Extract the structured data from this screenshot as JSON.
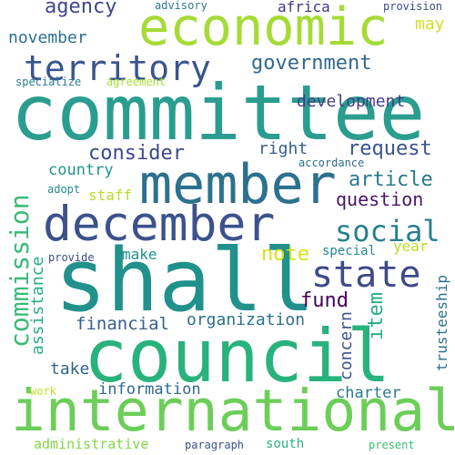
{
  "words": [
    {
      "id": "committee",
      "text": "committee",
      "color": "#2a9d8f"
    },
    {
      "id": "council",
      "text": "council",
      "color": "#28b27c"
    },
    {
      "id": "international",
      "text": "international",
      "color": "#6cce59"
    },
    {
      "id": "shall",
      "text": "shall",
      "color": "#21918c"
    },
    {
      "id": "december",
      "text": "december",
      "color": "#3b528b"
    },
    {
      "id": "economic",
      "text": "economic",
      "color": "#a5db36"
    },
    {
      "id": "member",
      "text": "member",
      "color": "#2c718e"
    },
    {
      "id": "commission",
      "text": "commission",
      "color": "#3aba76"
    },
    {
      "id": "territory",
      "text": "territory",
      "color": "#39568c"
    },
    {
      "id": "state",
      "text": "state",
      "color": "#3e4a89"
    },
    {
      "id": "social",
      "text": "social",
      "color": "#27808e"
    },
    {
      "id": "government",
      "text": "government",
      "color": "#31688e"
    },
    {
      "id": "agency",
      "text": "agency",
      "color": "#3f4788"
    },
    {
      "id": "november",
      "text": "november",
      "color": "#2d708e"
    },
    {
      "id": "request",
      "text": "request",
      "color": "#3b528b"
    },
    {
      "id": "consider",
      "text": "consider",
      "color": "#3e4989"
    },
    {
      "id": "development",
      "text": "development",
      "color": "#433e85"
    },
    {
      "id": "article",
      "text": "article",
      "color": "#2a788e"
    },
    {
      "id": "question",
      "text": "question",
      "color": "#481668"
    },
    {
      "id": "country",
      "text": "country",
      "color": "#21918c"
    },
    {
      "id": "right",
      "text": "right",
      "color": "#355f8d"
    },
    {
      "id": "fund",
      "text": "fund",
      "color": "#440154"
    },
    {
      "id": "item",
      "text": "item",
      "color": "#25ac82"
    },
    {
      "id": "note",
      "text": "note",
      "color": "#d8e219"
    },
    {
      "id": "financial",
      "text": "financial",
      "color": "#355f8d"
    },
    {
      "id": "organization",
      "text": "organization",
      "color": "#2d708e"
    },
    {
      "id": "information",
      "text": "information",
      "color": "#31688e"
    },
    {
      "id": "assistance",
      "text": "assistance",
      "color": "#29af7f"
    },
    {
      "id": "concern",
      "text": "concern",
      "color": "#3b528b"
    },
    {
      "id": "take",
      "text": "take",
      "color": "#31688e"
    },
    {
      "id": "charter",
      "text": "charter",
      "color": "#2a788e"
    },
    {
      "id": "make",
      "text": "make",
      "color": "#21918c"
    },
    {
      "id": "staff",
      "text": "staff",
      "color": "#b5de2b"
    },
    {
      "id": "special",
      "text": "special",
      "color": "#23898e"
    },
    {
      "id": "year",
      "text": "year",
      "color": "#b8de29"
    },
    {
      "id": "trusteeship",
      "text": "trusteeship",
      "color": "#2c728e"
    },
    {
      "id": "africa",
      "text": "africa",
      "color": "#453882"
    },
    {
      "id": "may",
      "text": "may",
      "color": "#d0e11c"
    },
    {
      "id": "advisory",
      "text": "advisory",
      "color": "#2a788e"
    },
    {
      "id": "provision",
      "text": "provision",
      "color": "#3e4a89"
    },
    {
      "id": "specialize",
      "text": "specialize",
      "color": "#287d8e"
    },
    {
      "id": "agreement",
      "text": "agreement",
      "color": "#a8db34"
    },
    {
      "id": "accordance",
      "text": "accordance",
      "color": "#2e6f8e"
    },
    {
      "id": "adopt",
      "text": "adopt",
      "color": "#24868e"
    },
    {
      "id": "provide",
      "text": "provide",
      "color": "#3e4a89"
    },
    {
      "id": "work",
      "text": "work",
      "color": "#c2df23"
    },
    {
      "id": "administrative",
      "text": "administrative",
      "color": "#86d549"
    },
    {
      "id": "paragraph",
      "text": "paragraph",
      "color": "#3b528b"
    },
    {
      "id": "south",
      "text": "south",
      "color": "#2ab07f"
    },
    {
      "id": "present",
      "text": "present",
      "color": "#3dbc74"
    }
  ]
}
